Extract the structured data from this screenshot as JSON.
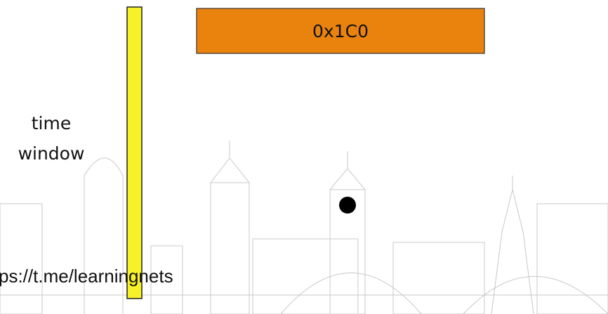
{
  "labels": {
    "register": "0x1C0",
    "time_window": [
      "time",
      "window"
    ],
    "url": "ps://t.me/learningnets"
  }
}
